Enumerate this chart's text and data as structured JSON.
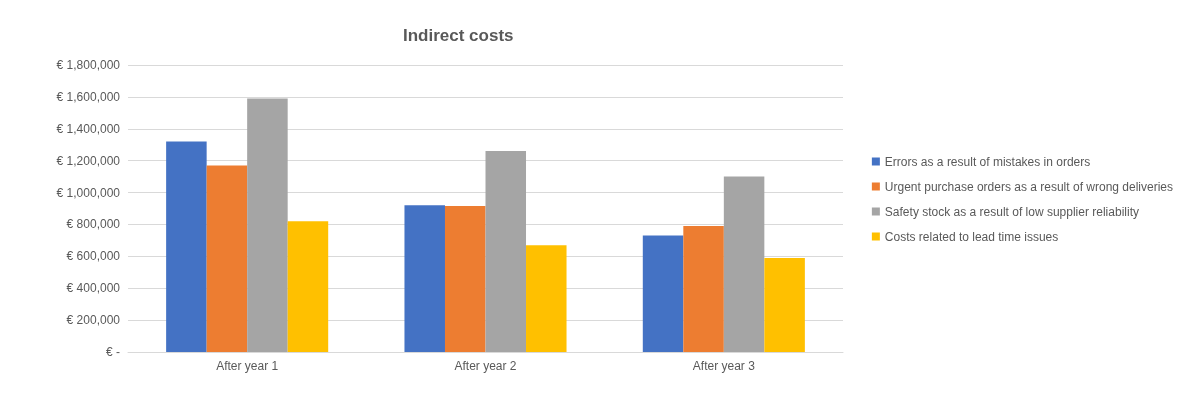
{
  "chart_data": {
    "type": "bar",
    "title": "Indirect costs",
    "categories": [
      "After year 1",
      "After year 2",
      "After year 3"
    ],
    "series": [
      {
        "name": "Errors as a result of mistakes in orders",
        "color": "#4472c4",
        "values": [
          1320000,
          920000,
          730000
        ]
      },
      {
        "name": "Urgent purchase orders as a result of wrong deliveries",
        "color": "#ed7d31",
        "values": [
          1170000,
          915000,
          790000
        ]
      },
      {
        "name": "Safety stock as a result of low supplier reliability",
        "color": "#a5a5a5",
        "values": [
          1590000,
          1260000,
          1100000
        ]
      },
      {
        "name": "Costs related to lead time issues",
        "color": "#ffc000",
        "values": [
          820000,
          670000,
          590000
        ]
      }
    ],
    "ylim": [
      0,
      1800000
    ],
    "yticks": [
      {
        "value": 0,
        "label": "€ -"
      },
      {
        "value": 200000,
        "label": "€ 200,000"
      },
      {
        "value": 400000,
        "label": "€ 400,000"
      },
      {
        "value": 600000,
        "label": "€ 600,000"
      },
      {
        "value": 800000,
        "label": "€ 800,000"
      },
      {
        "value": 1000000,
        "label": "€ 1,000,000"
      },
      {
        "value": 1200000,
        "label": "€ 1,200,000"
      },
      {
        "value": 1400000,
        "label": "€ 1,400,000"
      },
      {
        "value": 1600000,
        "label": "€ 1,600,000"
      },
      {
        "value": 1800000,
        "label": "€ 1,800,000"
      }
    ],
    "grid": "y",
    "legend": "right"
  }
}
